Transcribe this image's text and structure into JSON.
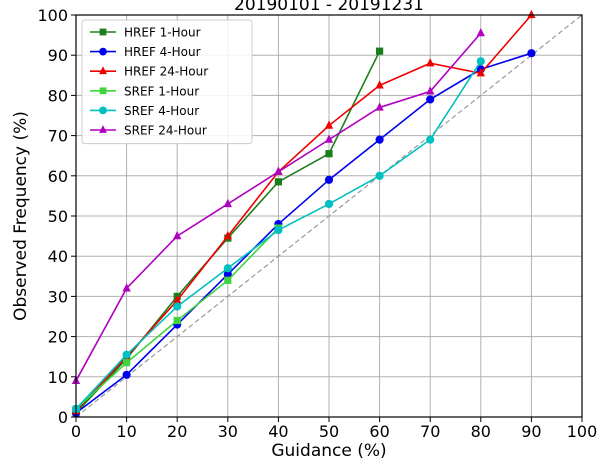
{
  "chart_data": {
    "type": "line",
    "title": "20190101 - 20191231",
    "xlabel": "Guidance (%)",
    "ylabel": "Observed Frequency (%)",
    "xlim": [
      0,
      100
    ],
    "ylim": [
      0,
      100
    ],
    "xticks": [
      "0",
      "10",
      "20",
      "30",
      "40",
      "50",
      "60",
      "70",
      "80",
      "90",
      "100"
    ],
    "yticks": [
      "0",
      "10",
      "20",
      "30",
      "40",
      "50",
      "60",
      "70",
      "80",
      "90",
      "100"
    ],
    "grid": true,
    "legend_position": "top-left",
    "reference_line": {
      "style": "dashed",
      "color": "#999999",
      "points": [
        [
          0,
          0
        ],
        [
          100,
          100
        ]
      ]
    },
    "series": [
      {
        "name": "HREF 1-Hour",
        "color": "#1a7f1a",
        "marker": "square",
        "x": [
          0,
          10,
          20,
          30,
          40,
          50,
          60
        ],
        "y": [
          1,
          14.5,
          30,
          44.5,
          58.5,
          65.5,
          91
        ]
      },
      {
        "name": "HREF 4-Hour",
        "color": "#0000ee",
        "marker": "circle",
        "x": [
          0,
          10,
          20,
          30,
          40,
          50,
          60,
          70,
          80,
          90
        ],
        "y": [
          1,
          10.5,
          23,
          35.5,
          48,
          59,
          69,
          79,
          86.5,
          90.5
        ]
      },
      {
        "name": "HREF 24-Hour",
        "color": "#ee0000",
        "marker": "triangle",
        "x": [
          0,
          10,
          20,
          30,
          40,
          50,
          60,
          70,
          80,
          90
        ],
        "y": [
          1.5,
          15,
          29,
          45,
          61,
          72.5,
          82.5,
          88,
          85.5,
          100
        ]
      },
      {
        "name": "SREF 1-Hour",
        "color": "#3ed43e",
        "marker": "square",
        "x": [
          0,
          10,
          20,
          30,
          40
        ],
        "y": [
          2,
          13.5,
          24,
          34,
          47
        ]
      },
      {
        "name": "SREF 4-Hour",
        "color": "#00c0c0",
        "marker": "circle",
        "x": [
          0,
          10,
          20,
          30,
          40,
          50,
          60,
          70,
          80
        ],
        "y": [
          2,
          15.5,
          27.5,
          37,
          46.5,
          53,
          60,
          69,
          88.5
        ]
      },
      {
        "name": "SREF 24-Hour",
        "color": "#b000c0",
        "marker": "triangle",
        "x": [
          0,
          10,
          20,
          30,
          40,
          50,
          60,
          70,
          80
        ],
        "y": [
          9,
          32,
          45,
          53,
          61,
          69,
          77,
          81,
          95.5
        ]
      }
    ]
  }
}
